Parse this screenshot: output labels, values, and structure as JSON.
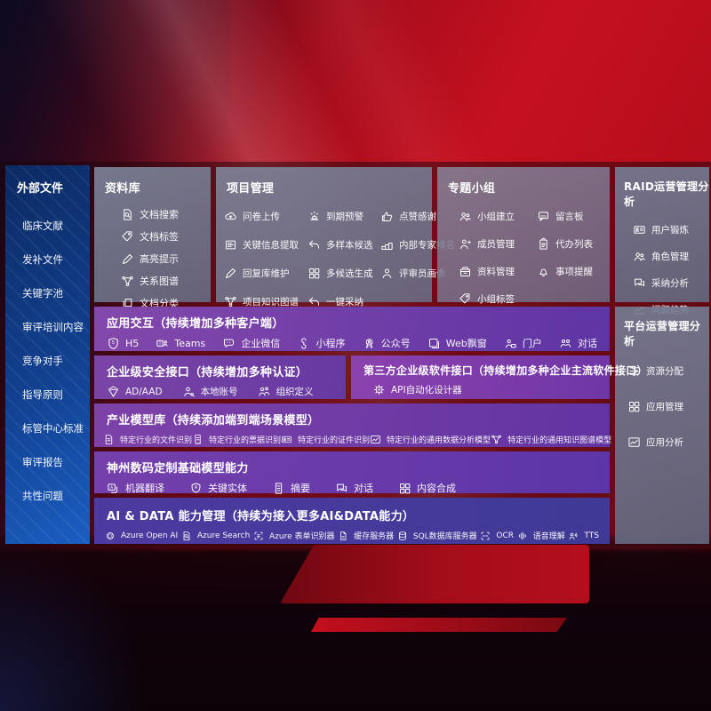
{
  "sidebar": {
    "title": "外部文件",
    "items": [
      "临床文献",
      "发补文件",
      "关键字池",
      "审评培训内容",
      "竞争对手",
      "指导原则",
      "标管中心标准",
      "审评报告",
      "共性问题"
    ]
  },
  "panels": {
    "library": {
      "title": "资料库",
      "items": [
        {
          "icon": "doc-search",
          "label": "文档搜索"
        },
        {
          "icon": "tag",
          "label": "文档标签"
        },
        {
          "icon": "pen",
          "label": "高亮提示"
        },
        {
          "icon": "network",
          "label": "关系图谱"
        },
        {
          "icon": "copy",
          "label": "文档分类"
        }
      ]
    },
    "project": {
      "title": "项目管理",
      "items": [
        {
          "icon": "cloud-up",
          "label": "问卷上传"
        },
        {
          "icon": "alarm",
          "label": "到期预警"
        },
        {
          "icon": "thumb",
          "label": "点赞感谢"
        },
        {
          "icon": "card",
          "label": "关键信息提取"
        },
        {
          "icon": "reply",
          "label": "多样本候选"
        },
        {
          "icon": "podium",
          "label": "内部专家排名"
        },
        {
          "icon": "pen",
          "label": "回复库维护"
        },
        {
          "icon": "grid",
          "label": "多候选生成"
        },
        {
          "icon": "person",
          "label": "评审员画像"
        },
        {
          "icon": "network",
          "label": "项目知识图谱"
        },
        {
          "icon": "reply",
          "label": "一键采纳"
        }
      ]
    },
    "group": {
      "title": "专题小组",
      "items": [
        {
          "icon": "users",
          "label": "小组建立"
        },
        {
          "icon": "bbs",
          "label": "留言板"
        },
        {
          "icon": "person-plus",
          "label": "成员管理"
        },
        {
          "icon": "clipboard",
          "label": "代办列表"
        },
        {
          "icon": "box",
          "label": "资料管理"
        },
        {
          "icon": "bell",
          "label": "事项提醒"
        },
        {
          "icon": "tag",
          "label": "小组标签"
        }
      ]
    },
    "raid": {
      "title": "RAID运营管理分析",
      "items": [
        {
          "icon": "id-card",
          "label": "用户锻炼"
        },
        {
          "icon": "users",
          "label": "角色管理"
        },
        {
          "icon": "chat",
          "label": "采纳分析"
        },
        {
          "icon": "trend",
          "label": "问题趋势"
        }
      ]
    },
    "platform": {
      "title": "平台运营管理分析",
      "items": [
        {
          "icon": "sliders",
          "label": "资源分配"
        },
        {
          "icon": "grid",
          "label": "应用管理"
        },
        {
          "icon": "chart",
          "label": "应用分析"
        }
      ]
    }
  },
  "rows": {
    "interaction": {
      "title": "应用交互（持续增加多种客户端）",
      "items": [
        {
          "icon": "h5",
          "label": "H5"
        },
        {
          "icon": "teams",
          "label": "Teams"
        },
        {
          "icon": "wechat",
          "label": "企业微信"
        },
        {
          "icon": "mini",
          "label": "小程序"
        },
        {
          "icon": "pubacc",
          "label": "公众号"
        },
        {
          "icon": "webwin",
          "label": "Web飘窗"
        },
        {
          "icon": "portal",
          "label": "门户"
        },
        {
          "icon": "dialog",
          "label": "对话"
        }
      ]
    },
    "security": {
      "title": "企业级安全接口（持续增加多种认证）",
      "items": [
        {
          "icon": "ad",
          "label": "AD/AAD"
        },
        {
          "icon": "acct",
          "label": "本地账号"
        },
        {
          "icon": "org",
          "label": "组织定义"
        }
      ]
    },
    "thirdparty": {
      "title": "第三方企业级软件接口（持续增加多种企业主流软件接口）",
      "items": [
        {
          "icon": "api",
          "label": "API自动化设计器"
        }
      ]
    },
    "models": {
      "title": "产业模型库（持续添加端到端场景模型）",
      "items": [
        {
          "icon": "doc",
          "label": "特定行业的文件识别"
        },
        {
          "icon": "receipt",
          "label": "特定行业的票据识别"
        },
        {
          "icon": "id-card",
          "label": "特定行业的证件识别"
        },
        {
          "icon": "chart",
          "label": "特定行业的通用数据分析模型"
        },
        {
          "icon": "network",
          "label": "特定行业的通用知识图谱模型"
        }
      ]
    },
    "foundation": {
      "title": "神州数码定制基础模型能力",
      "items": [
        {
          "icon": "translate",
          "label": "机器翻译"
        },
        {
          "icon": "entity",
          "label": "关键实体"
        },
        {
          "icon": "summary",
          "label": "摘要"
        },
        {
          "icon": "chat",
          "label": "对话"
        },
        {
          "icon": "grid",
          "label": "内容合成"
        }
      ]
    },
    "aidata": {
      "title": "AI & DATA 能力管理（持续为接入更多AI&DATA能力）",
      "items": [
        {
          "icon": "openai",
          "label": "Azure Open AI"
        },
        {
          "icon": "doc-search",
          "label": "Azure Search"
        },
        {
          "icon": "form",
          "label": "Azure 表单识别器"
        },
        {
          "icon": "server",
          "label": "缓存服务器"
        },
        {
          "icon": "db",
          "label": "SQL数据库服务器"
        },
        {
          "icon": "ocr",
          "label": "OCR"
        },
        {
          "icon": "speech",
          "label": "语音理解"
        },
        {
          "icon": "tts",
          "label": "TTS"
        }
      ]
    }
  },
  "colors": {
    "background_red": "#c5101f",
    "sidebar_blue": "#11408f",
    "panel_slate": "#76809a",
    "row_purple": "#7440ab",
    "row_indigo": "#46399c"
  }
}
